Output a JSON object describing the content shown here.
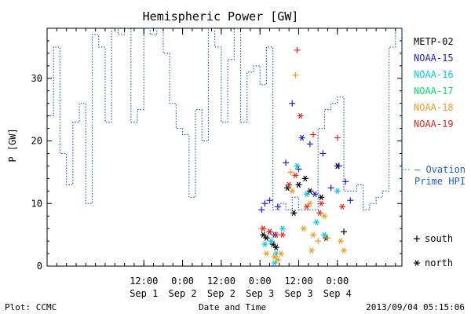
{
  "chart_data": {
    "type": "scatter",
    "title": "Hemispheric Power [GW]",
    "ylabel": "P [GW]",
    "xlabel": "Date and Time",
    "xlim": [
      "2013-08-31T06:00",
      "2013-09-04T20:00"
    ],
    "ylim": [
      0,
      38
    ],
    "y_ticks": [
      0,
      10,
      20,
      30
    ],
    "x_ticks": [
      {
        "time": "2013-09-01T12:00",
        "time_label": "12:00",
        "day_label": "Sep 1"
      },
      {
        "time": "2013-09-02T00:00",
        "time_label": "0:00",
        "day_label": "Sep 2"
      },
      {
        "time": "2013-09-02T12:00",
        "time_label": "12:00",
        "day_label": "Sep 2"
      },
      {
        "time": "2013-09-03T00:00",
        "time_label": "0:00",
        "day_label": "Sep 3"
      },
      {
        "time": "2013-09-03T12:00",
        "time_label": "12:00",
        "day_label": "Sep 3"
      },
      {
        "time": "2013-09-04T00:00",
        "time_label": "0:00",
        "day_label": "Sep 4"
      }
    ],
    "series_order": [
      "METP-02",
      "NOAA-15",
      "NOAA-16",
      "NOAA-17",
      "NOAA-18",
      "NOAA-19"
    ],
    "series": [
      {
        "name": "METP-02",
        "color": "#000000",
        "points": [
          {
            "t": "2013-09-03T01:00",
            "v": 5.0,
            "m": "north"
          },
          {
            "t": "2013-09-03T02:00",
            "v": 4.5,
            "m": "north"
          },
          {
            "t": "2013-09-03T03:00",
            "v": 5.5,
            "m": "north"
          },
          {
            "t": "2013-09-03T04:00",
            "v": 3.5,
            "m": "north"
          },
          {
            "t": "2013-09-03T05:00",
            "v": 3.0,
            "m": "north"
          },
          {
            "t": "2013-09-03T08:30",
            "v": 12.5,
            "m": "north"
          },
          {
            "t": "2013-09-03T10:30",
            "v": 8.5,
            "m": "north"
          },
          {
            "t": "2013-09-03T14:00",
            "v": 14.0,
            "m": "north"
          },
          {
            "t": "2013-09-03T15:30",
            "v": 12.0,
            "m": "north"
          },
          {
            "t": "2013-09-03T19:00",
            "v": 11.0,
            "m": "north"
          },
          {
            "t": "2013-09-04T00:00",
            "v": 16.0,
            "m": "north"
          },
          {
            "t": "2013-09-04T02:00",
            "v": 5.5,
            "m": "south"
          },
          {
            "t": "2013-09-03T12:00",
            "v": 13.0,
            "m": "north"
          },
          {
            "t": "2013-09-03T20:30",
            "v": 4.5,
            "m": "north"
          }
        ]
      },
      {
        "name": "NOAA-15",
        "color": "#1f1fcf",
        "points": [
          {
            "t": "2013-09-03T00:30",
            "v": 9.0,
            "m": "south"
          },
          {
            "t": "2013-09-03T01:30",
            "v": 10.0,
            "m": "south"
          },
          {
            "t": "2013-09-03T03:00",
            "v": 10.5,
            "m": "south"
          },
          {
            "t": "2013-09-03T05:30",
            "v": 9.5,
            "m": "south"
          },
          {
            "t": "2013-09-03T08:00",
            "v": 16.5,
            "m": "south"
          },
          {
            "t": "2013-09-03T12:00",
            "v": 15.5,
            "m": "south"
          },
          {
            "t": "2013-09-03T13:00",
            "v": 20.5,
            "m": "north"
          },
          {
            "t": "2013-09-03T15:30",
            "v": 19.5,
            "m": "south"
          },
          {
            "t": "2013-09-03T17:00",
            "v": 11.5,
            "m": "north"
          },
          {
            "t": "2013-09-03T19:30",
            "v": 18.0,
            "m": "south"
          },
          {
            "t": "2013-09-03T22:00",
            "v": 12.5,
            "m": "south"
          },
          {
            "t": "2013-09-04T00:30",
            "v": 16.0,
            "m": "south"
          },
          {
            "t": "2013-09-04T02:30",
            "v": 13.5,
            "m": "south"
          },
          {
            "t": "2013-09-04T04:00",
            "v": 10.5,
            "m": "south"
          },
          {
            "t": "2013-09-03T04:30",
            "v": 5.0,
            "m": "north"
          },
          {
            "t": "2013-09-03T10:00",
            "v": 26.0,
            "m": "south"
          }
        ]
      },
      {
        "name": "NOAA-16",
        "color": "#00c8e6",
        "points": [
          {
            "t": "2013-09-03T01:30",
            "v": 3.5,
            "m": "north"
          },
          {
            "t": "2013-09-03T03:30",
            "v": 4.0,
            "m": "north"
          },
          {
            "t": "2013-09-03T05:00",
            "v": 2.0,
            "m": "north"
          },
          {
            "t": "2013-09-03T07:00",
            "v": 6.0,
            "m": "north"
          },
          {
            "t": "2013-09-03T11:30",
            "v": 16.0,
            "m": "north"
          },
          {
            "t": "2013-09-03T14:30",
            "v": 11.5,
            "m": "north"
          },
          {
            "t": "2013-09-03T17:30",
            "v": 7.0,
            "m": "north"
          },
          {
            "t": "2013-09-03T20:00",
            "v": 5.0,
            "m": "north"
          },
          {
            "t": "2013-09-04T00:00",
            "v": 12.0,
            "m": "north"
          },
          {
            "t": "2013-09-03T04:30",
            "v": 0.5,
            "m": "north"
          }
        ]
      },
      {
        "name": "NOAA-17",
        "color": "#00e070",
        "points": []
      },
      {
        "name": "NOAA-18",
        "color": "#f09a1e",
        "points": [
          {
            "t": "2013-09-03T00:30",
            "v": 6.0,
            "m": "south"
          },
          {
            "t": "2013-09-03T02:00",
            "v": 2.0,
            "m": "north"
          },
          {
            "t": "2013-09-03T04:30",
            "v": 1.5,
            "m": "north"
          },
          {
            "t": "2013-09-03T05:30",
            "v": 1.0,
            "m": "north"
          },
          {
            "t": "2013-09-03T06:30",
            "v": 2.0,
            "m": "north"
          },
          {
            "t": "2013-09-03T10:00",
            "v": 12.0,
            "m": "north"
          },
          {
            "t": "2013-09-03T11:00",
            "v": 30.5,
            "m": "south"
          },
          {
            "t": "2013-09-03T13:30",
            "v": 6.0,
            "m": "north"
          },
          {
            "t": "2013-09-03T15:30",
            "v": 10.0,
            "m": "north"
          },
          {
            "t": "2013-09-03T16:30",
            "v": 5.0,
            "m": "north"
          },
          {
            "t": "2013-09-03T18:00",
            "v": 4.0,
            "m": "south"
          },
          {
            "t": "2013-09-03T20:00",
            "v": 8.0,
            "m": "north"
          },
          {
            "t": "2013-09-03T21:00",
            "v": 4.5,
            "m": "south"
          },
          {
            "t": "2013-09-04T01:00",
            "v": 4.0,
            "m": "north"
          },
          {
            "t": "2013-09-04T02:00",
            "v": 2.5,
            "m": "north"
          },
          {
            "t": "2013-09-03T16:00",
            "v": 2.5,
            "m": "north"
          },
          {
            "t": "2013-09-03T09:30",
            "v": 15.0,
            "m": "south"
          }
        ]
      },
      {
        "name": "NOAA-19",
        "color": "#e8281e",
        "points": [
          {
            "t": "2013-09-03T01:00",
            "v": 6.0,
            "m": "north"
          },
          {
            "t": "2013-09-03T03:00",
            "v": 5.5,
            "m": "north"
          },
          {
            "t": "2013-09-03T05:00",
            "v": 5.0,
            "m": "north"
          },
          {
            "t": "2013-09-03T07:00",
            "v": 5.0,
            "m": "north"
          },
          {
            "t": "2013-09-03T09:00",
            "v": 13.0,
            "m": "north"
          },
          {
            "t": "2013-09-03T11:30",
            "v": 34.5,
            "m": "south"
          },
          {
            "t": "2013-09-03T12:30",
            "v": 24.0,
            "m": "north"
          },
          {
            "t": "2013-09-03T14:30",
            "v": 9.5,
            "m": "north"
          },
          {
            "t": "2013-09-03T16:30",
            "v": 21.0,
            "m": "south"
          },
          {
            "t": "2013-09-03T18:30",
            "v": 8.5,
            "m": "north"
          },
          {
            "t": "2013-09-04T00:00",
            "v": 20.5,
            "m": "south"
          },
          {
            "t": "2013-09-04T01:30",
            "v": 9.5,
            "m": "north"
          },
          {
            "t": "2013-09-03T11:00",
            "v": 14.5,
            "m": "north"
          },
          {
            "t": "2013-09-03T19:00",
            "v": 10.0,
            "m": "north"
          }
        ]
      }
    ],
    "ovation": {
      "label_lines": [
        "— Ovation",
        "Prime HPI"
      ],
      "color": "#2060c8",
      "steps": [
        [
          "2013-08-31T06:00",
          24
        ],
        [
          "2013-08-31T08:00",
          35
        ],
        [
          "2013-08-31T10:00",
          18
        ],
        [
          "2013-08-31T12:00",
          13
        ],
        [
          "2013-08-31T14:00",
          23
        ],
        [
          "2013-08-31T16:00",
          26
        ],
        [
          "2013-08-31T18:00",
          10
        ],
        [
          "2013-08-31T20:00",
          37
        ],
        [
          "2013-08-31T22:00",
          35
        ],
        [
          "2013-09-01T00:00",
          23
        ],
        [
          "2013-09-01T02:00",
          38
        ],
        [
          "2013-09-01T04:00",
          37
        ],
        [
          "2013-09-01T06:00",
          38
        ],
        [
          "2013-09-01T08:00",
          23
        ],
        [
          "2013-09-01T10:00",
          25
        ],
        [
          "2013-09-01T12:00",
          38
        ],
        [
          "2013-09-01T14:00",
          37
        ],
        [
          "2013-09-01T16:00",
          38
        ],
        [
          "2013-09-01T18:00",
          34
        ],
        [
          "2013-09-01T20:00",
          26
        ],
        [
          "2013-09-01T22:00",
          22
        ],
        [
          "2013-09-02T00:00",
          21
        ],
        [
          "2013-09-02T02:00",
          11
        ],
        [
          "2013-09-02T04:00",
          25
        ],
        [
          "2013-09-02T06:00",
          20
        ],
        [
          "2013-09-02T08:00",
          38
        ],
        [
          "2013-09-02T10:00",
          35
        ],
        [
          "2013-09-02T12:00",
          23
        ],
        [
          "2013-09-02T14:00",
          33
        ],
        [
          "2013-09-02T16:00",
          38
        ],
        [
          "2013-09-02T18:00",
          23
        ],
        [
          "2013-09-02T20:00",
          31
        ],
        [
          "2013-09-02T22:00",
          32
        ],
        [
          "2013-09-03T00:00",
          29
        ],
        [
          "2013-09-03T02:00",
          35
        ],
        [
          "2013-09-03T04:00",
          9
        ],
        [
          "2013-09-03T06:00",
          10
        ],
        [
          "2013-09-03T08:00",
          9
        ],
        [
          "2013-09-03T10:00",
          11
        ],
        [
          "2013-09-03T12:00",
          9
        ],
        [
          "2013-09-03T14:00",
          9
        ],
        [
          "2013-09-03T16:00",
          9
        ],
        [
          "2013-09-03T18:00",
          22
        ],
        [
          "2013-09-03T20:00",
          25
        ],
        [
          "2013-09-03T22:00",
          26
        ],
        [
          "2013-09-04T00:00",
          27
        ],
        [
          "2013-09-04T02:00",
          12
        ],
        [
          "2013-09-04T04:00",
          12
        ],
        [
          "2013-09-04T06:00",
          13
        ],
        [
          "2013-09-04T08:00",
          9
        ],
        [
          "2013-09-04T10:00",
          10
        ],
        [
          "2013-09-04T12:00",
          11
        ],
        [
          "2013-09-04T14:00",
          12
        ],
        [
          "2013-09-04T16:00",
          35
        ],
        [
          "2013-09-04T18:00",
          38
        ],
        [
          "2013-09-04T20:00",
          10
        ]
      ]
    },
    "marker_key": [
      {
        "symbol": "+",
        "label": "south"
      },
      {
        "symbol": "*",
        "label": "north"
      }
    ]
  },
  "footer": {
    "source": "Plot: CCMC",
    "timestamp": "2013/09/04 05:15:06"
  }
}
